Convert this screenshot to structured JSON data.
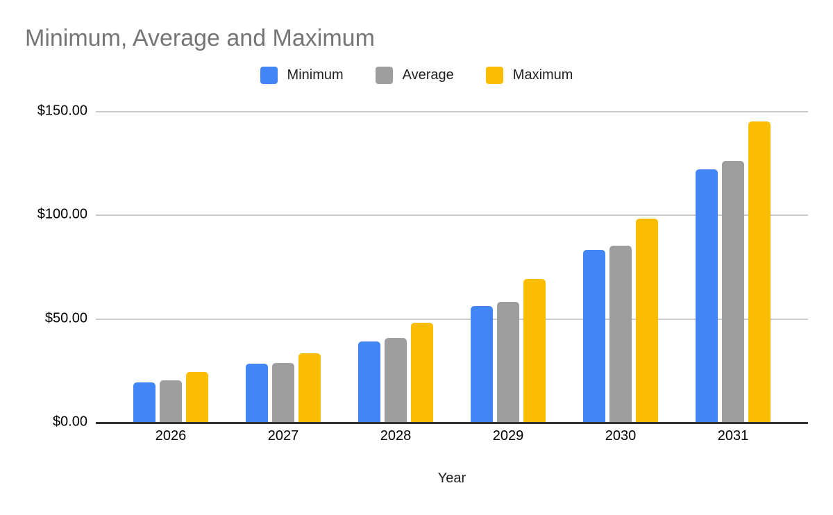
{
  "header": {
    "title": "Minimum, Average and Maximum",
    "title_color": "#757575"
  },
  "axes": {
    "x_label": "Year",
    "x_tick_labels": [
      "2026",
      "2027",
      "2028",
      "2029",
      "2030",
      "2031"
    ],
    "y_tick_labels": [
      "$0.00",
      "$50.00",
      "$100.00",
      "$150.00"
    ]
  },
  "colors": {
    "gridline": "#CCCCCC",
    "axis_line": "#333333",
    "tick_text": "#000000"
  },
  "chart_data": {
    "type": "bar",
    "title": "Minimum, Average and Maximum",
    "categories": [
      "2026",
      "2027",
      "2028",
      "2029",
      "2030",
      "2031"
    ],
    "series": [
      {
        "name": "Minimum",
        "color": "#4285F4",
        "values": [
          19,
          28,
          39,
          56,
          83,
          122
        ]
      },
      {
        "name": "Average",
        "color": "#9E9E9E",
        "values": [
          20,
          28.5,
          40.5,
          58,
          85,
          126
        ]
      },
      {
        "name": "Maximum",
        "color": "#FBBC04",
        "values": [
          24,
          33,
          48,
          69,
          98,
          145
        ]
      }
    ],
    "xlabel": "Year",
    "ylabel": "",
    "ylim": [
      0,
      150
    ],
    "yticks": [
      0,
      50,
      100,
      150
    ],
    "ytick_labels": [
      "$0.00",
      "$50.00",
      "$100.00",
      "$150.00"
    ],
    "grid": true,
    "legend_position": "top"
  }
}
